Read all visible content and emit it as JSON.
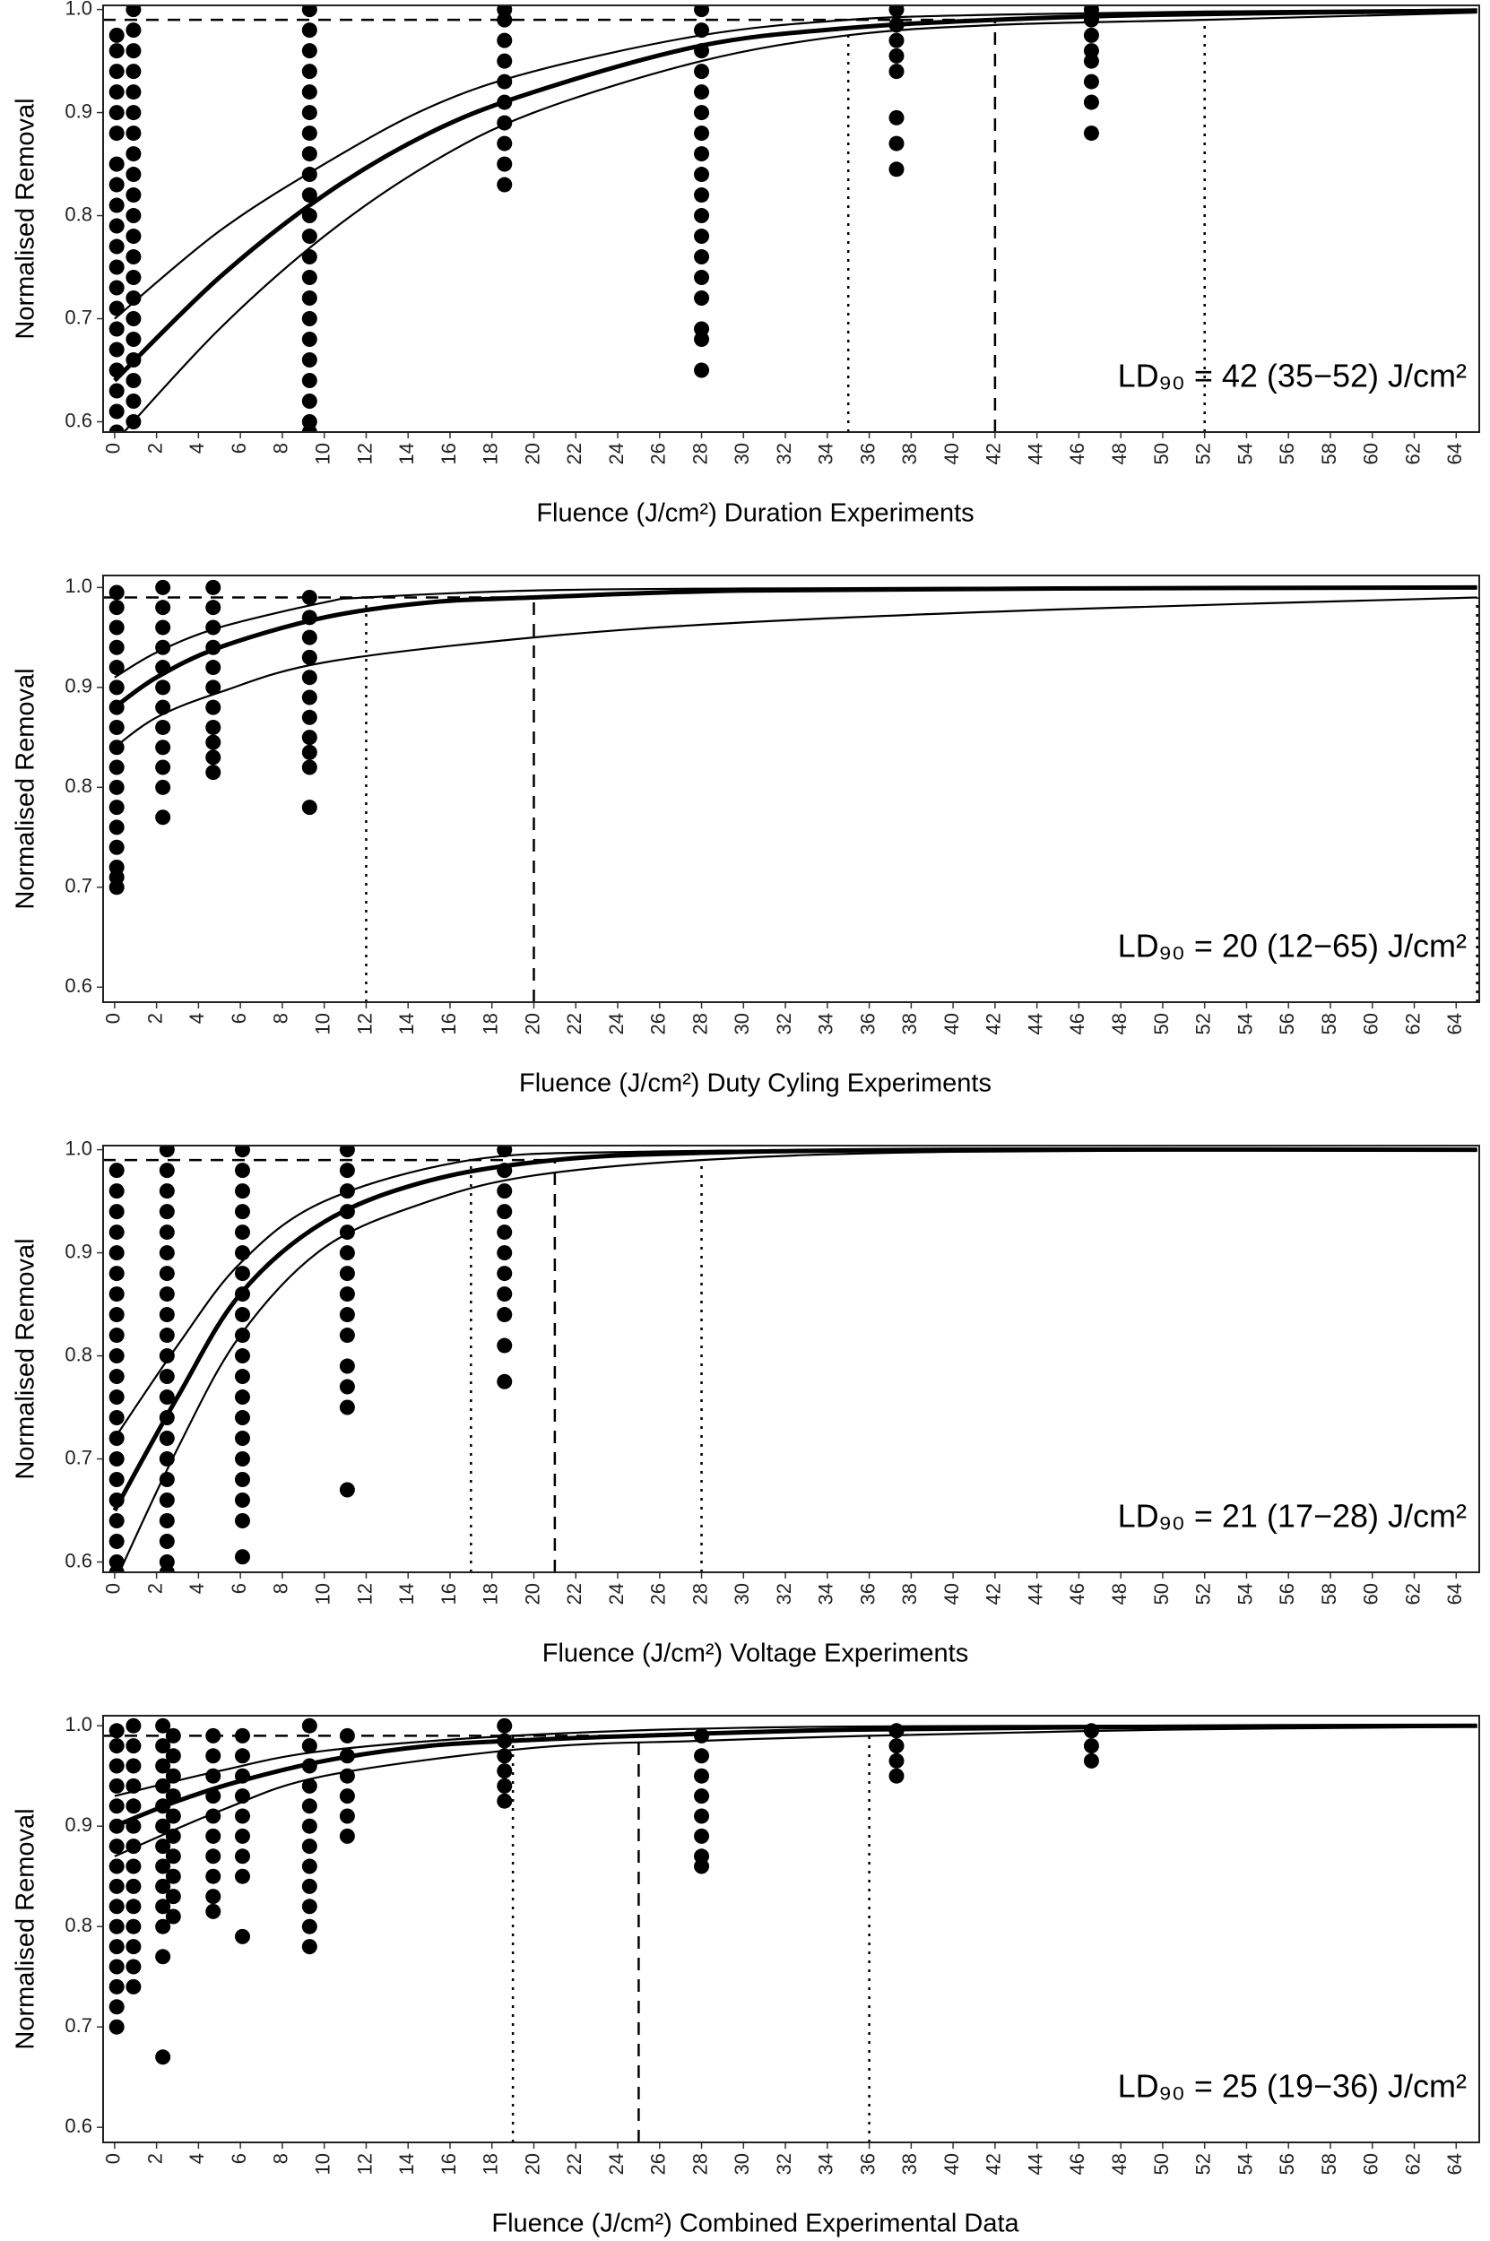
{
  "chart_data": [
    {
      "type": "scatter",
      "ylabel": "Normalised Removal",
      "xlabel": "Fluence (J/cm²) Duration Experiments",
      "annotation": "LD₉₀ = 42 (35−52) J/cm²",
      "color": "#000000",
      "xlim": [
        -0.55,
        65.1
      ],
      "xticks": [
        0,
        2,
        4,
        6,
        8,
        10,
        12,
        14,
        16,
        18,
        20,
        22,
        24,
        26,
        28,
        30,
        32,
        34,
        36,
        38,
        40,
        42,
        44,
        46,
        48,
        50,
        52,
        54,
        56,
        58,
        60,
        62,
        64
      ],
      "ylim": [
        0.59,
        1.004
      ],
      "yticks": [
        0.6,
        0.7,
        0.8,
        0.9,
        {
          "value": 1,
          "label": "1.0"
        }
      ],
      "hline": 0.99,
      "ld90": 42,
      "ld90_ci": [
        35,
        52
      ],
      "series": [
        {
          "x": [
            0,
            5,
            10,
            15,
            20,
            28,
            35,
            42,
            50,
            65
          ],
          "values": [
            0.64,
            0.74,
            0.82,
            0.88,
            0.92,
            0.965,
            0.982,
            0.99,
            0.995,
            0.999
          ]
        },
        {
          "x": [
            0,
            5,
            10,
            15,
            20,
            28,
            35,
            42,
            52,
            65
          ],
          "values": [
            0.7,
            0.785,
            0.85,
            0.905,
            0.94,
            0.975,
            0.99,
            0.995,
            0.998,
            1.0
          ]
        },
        {
          "x": [
            0,
            5,
            10,
            15,
            20,
            28,
            35,
            42,
            52,
            65
          ],
          "values": [
            0.58,
            0.69,
            0.78,
            0.85,
            0.9,
            0.95,
            0.975,
            0.985,
            0.99,
            0.997
          ]
        }
      ],
      "groups": [
        {
          "x": 0.1,
          "values": [
            0.59,
            0.61,
            0.63,
            0.65,
            0.67,
            0.69,
            0.71,
            0.73,
            0.75,
            0.77,
            0.79,
            0.81,
            0.83,
            0.85,
            0.88,
            0.9,
            0.92,
            0.94,
            0.96,
            0.975
          ]
        },
        {
          "x": 0.9,
          "values": [
            0.6,
            0.62,
            0.64,
            0.66,
            0.68,
            0.7,
            0.72,
            0.74,
            0.76,
            0.78,
            0.8,
            0.82,
            0.84,
            0.86,
            0.88,
            0.9,
            0.92,
            0.94,
            0.96,
            0.98,
            1.0
          ]
        },
        {
          "x": 9.3,
          "values": [
            0.59,
            0.6,
            0.62,
            0.64,
            0.66,
            0.68,
            0.7,
            0.72,
            0.74,
            0.76,
            0.78,
            0.8,
            0.82,
            0.84,
            0.86,
            0.88,
            0.9,
            0.92,
            0.94,
            0.96,
            0.98,
            1.0
          ]
        },
        {
          "x": 18.6,
          "values": [
            0.83,
            0.85,
            0.87,
            0.89,
            0.91,
            0.93,
            0.95,
            0.97,
            0.99,
            1.0
          ]
        },
        {
          "x": 28,
          "values": [
            0.65,
            0.68,
            0.69,
            0.72,
            0.74,
            0.76,
            0.78,
            0.8,
            0.82,
            0.84,
            0.86,
            0.88,
            0.9,
            0.92,
            0.94,
            0.96,
            0.98,
            1.0
          ]
        },
        {
          "x": 37.3,
          "values": [
            0.845,
            0.87,
            0.895,
            0.94,
            0.955,
            0.97,
            0.985,
            1.0
          ]
        },
        {
          "x": 46.6,
          "values": [
            0.88,
            0.91,
            0.93,
            0.95,
            0.96,
            0.975,
            0.99,
            1.0
          ]
        }
      ]
    },
    {
      "type": "scatter",
      "ylabel": "Normalised Removal",
      "xlabel": "Fluence (J/cm²) Duty Cyling Experiments",
      "annotation": "LD₉₀ = 20 (12−65) J/cm²",
      "color": "#000000",
      "xlim": [
        -0.55,
        65.1
      ],
      "xticks": [
        0,
        2,
        4,
        6,
        8,
        10,
        12,
        14,
        16,
        18,
        20,
        22,
        24,
        26,
        28,
        30,
        32,
        34,
        36,
        38,
        40,
        42,
        44,
        46,
        48,
        50,
        52,
        54,
        56,
        58,
        60,
        62,
        64
      ],
      "ylim": [
        0.585,
        1.012
      ],
      "yticks": [
        0.6,
        0.7,
        0.8,
        0.9,
        {
          "value": 1,
          "label": "1.0"
        }
      ],
      "hline": 0.99,
      "ld90": 20,
      "ld90_ci": [
        12,
        65
      ],
      "series": [
        {
          "x": [
            0,
            2,
            5,
            10,
            15,
            20,
            30,
            45,
            65
          ],
          "values": [
            0.88,
            0.91,
            0.94,
            0.97,
            0.985,
            0.99,
            0.997,
            0.999,
            1.0
          ]
        },
        {
          "x": [
            0,
            2,
            5,
            10,
            12,
            20,
            30,
            45,
            65
          ],
          "values": [
            0.91,
            0.935,
            0.96,
            0.985,
            0.99,
            0.997,
            0.999,
            1.0,
            1.0
          ]
        },
        {
          "x": [
            0,
            2,
            5,
            10,
            20,
            30,
            45,
            65
          ],
          "values": [
            0.84,
            0.87,
            0.895,
            0.925,
            0.95,
            0.965,
            0.978,
            0.99
          ]
        }
      ],
      "groups": [
        {
          "x": 0.1,
          "values": [
            0.7,
            0.71,
            0.72,
            0.74,
            0.76,
            0.78,
            0.8,
            0.82,
            0.84,
            0.86,
            0.88,
            0.9,
            0.92,
            0.94,
            0.96,
            0.98,
            0.995
          ]
        },
        {
          "x": 2.3,
          "values": [
            0.77,
            0.8,
            0.82,
            0.84,
            0.86,
            0.88,
            0.9,
            0.92,
            0.94,
            0.96,
            0.98,
            1.0
          ]
        },
        {
          "x": 4.7,
          "values": [
            0.815,
            0.83,
            0.845,
            0.86,
            0.88,
            0.9,
            0.92,
            0.94,
            0.96,
            0.98,
            1.0
          ]
        },
        {
          "x": 9.3,
          "values": [
            0.78,
            0.82,
            0.835,
            0.85,
            0.87,
            0.89,
            0.91,
            0.93,
            0.95,
            0.97,
            0.99
          ]
        }
      ]
    },
    {
      "type": "scatter",
      "ylabel": "Normalised Removal",
      "xlabel": "Fluence (J/cm²) Voltage Experiments",
      "annotation": "LD₉₀ = 21 (17−28) J/cm²",
      "color": "#000000",
      "xlim": [
        -0.55,
        65.1
      ],
      "xticks": [
        0,
        2,
        4,
        6,
        8,
        10,
        12,
        14,
        16,
        18,
        20,
        22,
        24,
        26,
        28,
        30,
        32,
        34,
        36,
        38,
        40,
        42,
        44,
        46,
        48,
        50,
        52,
        54,
        56,
        58,
        60,
        62,
        64
      ],
      "ylim": [
        0.59,
        1.004
      ],
      "yticks": [
        0.6,
        0.7,
        0.8,
        0.9,
        {
          "value": 1,
          "label": "1.0"
        }
      ],
      "hline": 0.99,
      "ld90": 21,
      "ld90_ci": [
        17,
        28
      ],
      "series": [
        {
          "x": [
            0,
            3,
            6,
            10,
            15,
            21,
            28,
            40,
            65
          ],
          "values": [
            0.65,
            0.76,
            0.86,
            0.93,
            0.97,
            0.99,
            0.997,
            1.0,
            1.0
          ]
        },
        {
          "x": [
            0,
            3,
            6,
            10,
            17,
            25,
            40,
            65
          ],
          "values": [
            0.72,
            0.81,
            0.89,
            0.95,
            0.99,
            0.998,
            1.0,
            1.0
          ]
        },
        {
          "x": [
            0,
            3,
            6,
            10,
            15,
            20,
            28,
            40,
            65
          ],
          "values": [
            0.58,
            0.71,
            0.82,
            0.905,
            0.95,
            0.975,
            0.99,
            0.998,
            1.0
          ]
        }
      ],
      "groups": [
        {
          "x": 0.1,
          "values": [
            0.59,
            0.6,
            0.62,
            0.64,
            0.66,
            0.68,
            0.7,
            0.72,
            0.74,
            0.76,
            0.78,
            0.8,
            0.82,
            0.84,
            0.86,
            0.88,
            0.9,
            0.92,
            0.94,
            0.96,
            0.98
          ]
        },
        {
          "x": 2.5,
          "values": [
            0.59,
            0.6,
            0.62,
            0.64,
            0.66,
            0.68,
            0.7,
            0.72,
            0.74,
            0.76,
            0.78,
            0.8,
            0.82,
            0.84,
            0.86,
            0.88,
            0.9,
            0.92,
            0.94,
            0.96,
            0.98,
            1.0
          ]
        },
        {
          "x": 6.1,
          "values": [
            0.605,
            0.64,
            0.66,
            0.68,
            0.7,
            0.72,
            0.74,
            0.76,
            0.78,
            0.8,
            0.82,
            0.84,
            0.86,
            0.88,
            0.9,
            0.92,
            0.94,
            0.96,
            0.98,
            1.0
          ]
        },
        {
          "x": 11.1,
          "values": [
            0.67,
            0.75,
            0.77,
            0.79,
            0.82,
            0.84,
            0.86,
            0.88,
            0.9,
            0.92,
            0.94,
            0.96,
            0.98,
            1.0
          ]
        },
        {
          "x": 18.6,
          "values": [
            0.775,
            0.81,
            0.84,
            0.86,
            0.88,
            0.9,
            0.92,
            0.94,
            0.96,
            0.98,
            1.0
          ]
        }
      ]
    },
    {
      "type": "scatter",
      "ylabel": "Normalised Removal",
      "xlabel": "Fluence (J/cm²) Combined Experimental Data",
      "annotation": "LD₉₀ = 25 (19−36) J/cm²",
      "color": "#000000",
      "xlim": [
        -0.55,
        65.1
      ],
      "xticks": [
        0,
        2,
        4,
        6,
        8,
        10,
        12,
        14,
        16,
        18,
        20,
        22,
        24,
        26,
        28,
        30,
        32,
        34,
        36,
        38,
        40,
        42,
        44,
        46,
        48,
        50,
        52,
        54,
        56,
        58,
        60,
        62,
        64
      ],
      "ylim": [
        0.585,
        1.01
      ],
      "yticks": [
        0.6,
        0.7,
        0.8,
        0.9,
        {
          "value": 1,
          "label": "1.0"
        }
      ],
      "hline": 0.99,
      "ld90": 25,
      "ld90_ci": [
        19,
        36
      ],
      "series": [
        {
          "x": [
            0,
            3,
            6,
            10,
            15,
            20,
            25,
            35,
            50,
            65
          ],
          "values": [
            0.9,
            0.925,
            0.945,
            0.965,
            0.98,
            0.986,
            0.99,
            0.996,
            0.999,
            1.0
          ]
        },
        {
          "x": [
            0,
            5,
            10,
            19,
            30,
            45,
            65
          ],
          "values": [
            0.93,
            0.955,
            0.975,
            0.99,
            0.998,
            1.0,
            1.0
          ]
        },
        {
          "x": [
            0,
            5,
            10,
            20,
            28,
            36,
            50,
            65
          ],
          "values": [
            0.87,
            0.915,
            0.95,
            0.978,
            0.985,
            0.99,
            0.996,
            0.999
          ]
        }
      ],
      "groups": [
        {
          "x": 0.1,
          "values": [
            0.7,
            0.72,
            0.74,
            0.76,
            0.78,
            0.8,
            0.82,
            0.84,
            0.86,
            0.88,
            0.9,
            0.92,
            0.94,
            0.96,
            0.98,
            0.995
          ]
        },
        {
          "x": 0.9,
          "values": [
            0.74,
            0.76,
            0.78,
            0.8,
            0.82,
            0.84,
            0.86,
            0.88,
            0.9,
            0.92,
            0.94,
            0.96,
            0.98,
            1.0
          ]
        },
        {
          "x": 2.3,
          "values": [
            0.67,
            0.77,
            0.8,
            0.82,
            0.84,
            0.86,
            0.88,
            0.9,
            0.92,
            0.94,
            0.96,
            0.98,
            1.0
          ]
        },
        {
          "x": 2.8,
          "values": [
            0.81,
            0.83,
            0.85,
            0.87,
            0.89,
            0.91,
            0.93,
            0.95,
            0.97,
            0.99
          ]
        },
        {
          "x": 4.7,
          "values": [
            0.815,
            0.83,
            0.85,
            0.87,
            0.89,
            0.91,
            0.93,
            0.95,
            0.97,
            0.99
          ]
        },
        {
          "x": 6.1,
          "values": [
            0.79,
            0.85,
            0.87,
            0.89,
            0.91,
            0.93,
            0.95,
            0.97,
            0.99
          ]
        },
        {
          "x": 9.3,
          "values": [
            0.78,
            0.8,
            0.82,
            0.84,
            0.86,
            0.88,
            0.9,
            0.92,
            0.94,
            0.96,
            0.98,
            1.0
          ]
        },
        {
          "x": 11.1,
          "values": [
            0.89,
            0.91,
            0.93,
            0.95,
            0.97,
            0.99
          ]
        },
        {
          "x": 18.6,
          "values": [
            0.925,
            0.94,
            0.955,
            0.97,
            0.985,
            1.0
          ]
        },
        {
          "x": 28,
          "values": [
            0.86,
            0.87,
            0.89,
            0.91,
            0.93,
            0.95,
            0.97,
            0.99
          ]
        },
        {
          "x": 37.3,
          "values": [
            0.95,
            0.965,
            0.98,
            0.995
          ]
        },
        {
          "x": 46.6,
          "values": [
            0.965,
            0.98,
            0.995
          ]
        }
      ]
    }
  ]
}
